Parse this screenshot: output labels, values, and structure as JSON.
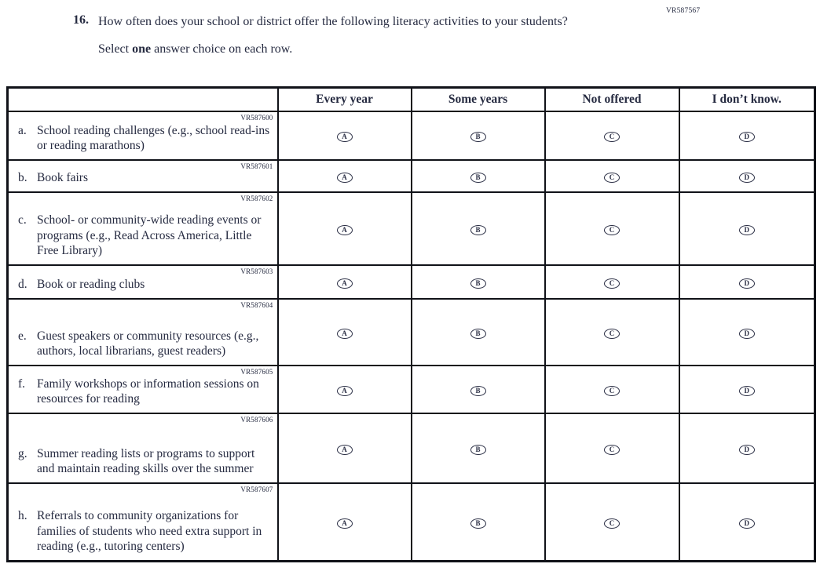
{
  "page": {
    "code": "VR587567"
  },
  "question": {
    "number": "16.",
    "text": "How often does your school or district offer the following literacy activities to your students?",
    "instruction": {
      "prefix": "Select ",
      "bold": "one",
      "suffix": " answer choice on each row."
    }
  },
  "table": {
    "columns": [
      "Every year",
      "Some years",
      "Not offered",
      "I don’t know."
    ],
    "options": [
      "A",
      "B",
      "C",
      "D"
    ],
    "rows": [
      {
        "letter": "a.",
        "code": "VR587600",
        "label": "School reading challenges (e.g., school read-ins or reading marathons)"
      },
      {
        "letter": "b.",
        "code": "VR587601",
        "label": "Book fairs"
      },
      {
        "letter": "c.",
        "code": "VR587602",
        "label": "School- or community-wide reading events or programs (e.g., Read Across America, Little Free Library)"
      },
      {
        "letter": "d.",
        "code": "VR587603",
        "label": "Book or reading clubs"
      },
      {
        "letter": "e.",
        "code": "VR587604",
        "label": "Guest speakers or community resources (e.g., authors, local librarians, guest readers)"
      },
      {
        "letter": "f.",
        "code": "VR587605",
        "label": "Family workshops or information sessions on resources for reading"
      },
      {
        "letter": "g.",
        "code": "VR587606",
        "label": "Summer reading lists or programs to support and maintain reading skills over the summer"
      },
      {
        "letter": "h.",
        "code": "VR587607",
        "label": "Referrals to community organizations for families of students who need extra support in reading (e.g., tutoring centers)"
      }
    ]
  }
}
